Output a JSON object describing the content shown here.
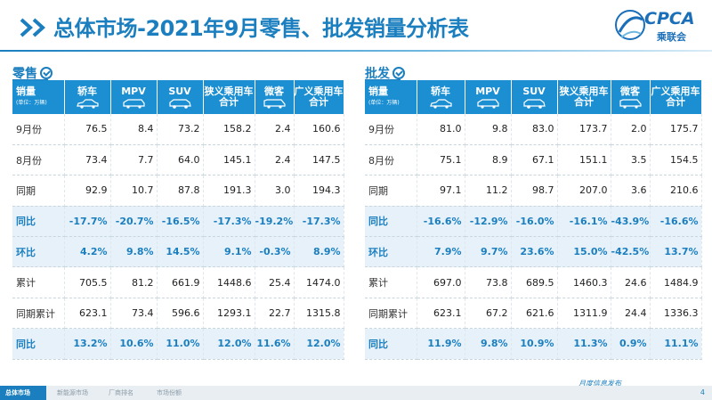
{
  "header": {
    "title": "总体市场-2021年9月零售、批发销量分析表",
    "logo_text": "CPCA",
    "logo_sub": "乘联会"
  },
  "retail": {
    "label": "零售",
    "corner": "销量",
    "corner_unit": "(单位：万辆)",
    "columns": [
      {
        "l1": "轿车",
        "l2": "",
        "icon": "sedan-icon"
      },
      {
        "l1": "MPV",
        "l2": "",
        "icon": "mpv-icon"
      },
      {
        "l1": "SUV",
        "l2": "",
        "icon": "suv-icon"
      },
      {
        "l1": "狭义乘用车",
        "l2": "合计",
        "icon": ""
      },
      {
        "l1": "微客",
        "l2": "",
        "icon": "minivan-icon"
      },
      {
        "l1": "广义乘用车",
        "l2": "合计",
        "icon": ""
      }
    ],
    "rows": [
      {
        "label": "9月份",
        "values": [
          "76.5",
          "8.4",
          "73.2",
          "158.2",
          "2.4",
          "160.6"
        ]
      },
      {
        "label": "8月份",
        "values": [
          "73.4",
          "7.7",
          "64.0",
          "145.1",
          "2.4",
          "147.5"
        ]
      },
      {
        "label": "同期",
        "values": [
          "92.9",
          "10.7",
          "87.8",
          "191.3",
          "3.0",
          "194.3"
        ]
      },
      {
        "label": "同比",
        "values": [
          "-17.7%",
          "-20.7%",
          "-16.5%",
          "-17.3%",
          "-19.2%",
          "-17.3%"
        ]
      },
      {
        "label": "环比",
        "values": [
          "4.2%",
          "9.8%",
          "14.5%",
          "9.1%",
          "-0.3%",
          "8.9%"
        ]
      },
      {
        "label": "累计",
        "values": [
          "705.5",
          "81.2",
          "661.9",
          "1448.6",
          "25.4",
          "1474.0"
        ]
      },
      {
        "label": "同期累计",
        "values": [
          "623.1",
          "73.4",
          "596.6",
          "1293.1",
          "22.7",
          "1315.8"
        ]
      },
      {
        "label": "同比",
        "values": [
          "13.2%",
          "10.6%",
          "11.0%",
          "12.0%",
          "11.6%",
          "12.0%"
        ]
      }
    ]
  },
  "wholesale": {
    "label": "批发",
    "corner": "销量",
    "corner_unit": "(单位：万辆)",
    "columns": [
      {
        "l1": "轿车",
        "l2": "",
        "icon": "sedan-icon"
      },
      {
        "l1": "MPV",
        "l2": "",
        "icon": "mpv-icon"
      },
      {
        "l1": "SUV",
        "l2": "",
        "icon": "suv-icon"
      },
      {
        "l1": "狭义乘用车",
        "l2": "合计",
        "icon": ""
      },
      {
        "l1": "微客",
        "l2": "",
        "icon": "minivan-icon"
      },
      {
        "l1": "广义乘用车",
        "l2": "合计",
        "icon": ""
      }
    ],
    "rows": [
      {
        "label": "9月份",
        "values": [
          "81.0",
          "9.8",
          "83.0",
          "173.7",
          "2.0",
          "175.7"
        ]
      },
      {
        "label": "8月份",
        "values": [
          "75.1",
          "8.9",
          "67.1",
          "151.1",
          "3.5",
          "154.5"
        ]
      },
      {
        "label": "同期",
        "values": [
          "97.1",
          "11.2",
          "98.7",
          "207.0",
          "3.6",
          "210.6"
        ]
      },
      {
        "label": "同比",
        "values": [
          "-16.6%",
          "-12.9%",
          "-16.0%",
          "-16.1%",
          "-43.9%",
          "-16.6%"
        ]
      },
      {
        "label": "环比",
        "values": [
          "7.9%",
          "9.7%",
          "23.6%",
          "15.0%",
          "-42.5%",
          "13.7%"
        ]
      },
      {
        "label": "累计",
        "values": [
          "697.0",
          "73.8",
          "689.5",
          "1460.3",
          "24.6",
          "1484.9"
        ]
      },
      {
        "label": "同期累计",
        "values": [
          "623.1",
          "67.2",
          "621.6",
          "1311.9",
          "24.4",
          "1336.3"
        ]
      },
      {
        "label": "同比",
        "values": [
          "11.9%",
          "9.8%",
          "10.9%",
          "11.3%",
          "0.9%",
          "11.1%"
        ]
      }
    ]
  },
  "highlight_rows": [
    3,
    4,
    7
  ],
  "colors": {
    "accent": "#1b7fbf",
    "header_bg": "#1b8fd2",
    "highlight_bg": "#e6f1fa"
  },
  "footer": {
    "tabs": [
      "总体市场",
      "新能源市场",
      "厂商排名",
      "市场份额"
    ],
    "monthly_label": "月度信息发布",
    "page": "4"
  }
}
